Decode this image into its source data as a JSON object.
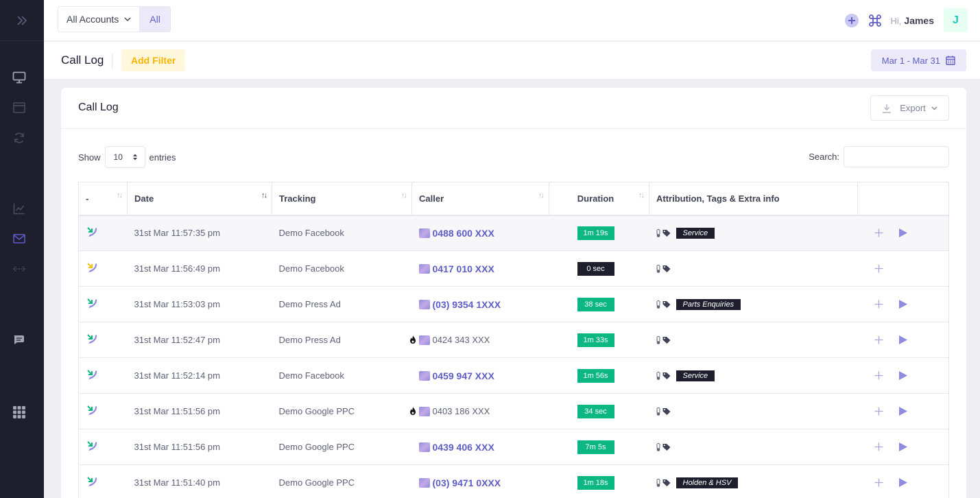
{
  "header": {
    "account_select": "All Accounts",
    "all_label": "All",
    "greeting": "Hi,",
    "user_name": "James",
    "avatar_letter": "J"
  },
  "subheader": {
    "title": "Call Log",
    "add_filter": "Add Filter",
    "date_range": "Mar 1 - Mar 31"
  },
  "card": {
    "title": "Call Log",
    "export_label": "Export",
    "show_label": "Show",
    "entries_value": "10",
    "entries_label": "entries",
    "search_label": "Search:",
    "search_value": ""
  },
  "table": {
    "columns": [
      "-",
      "Date",
      "Tracking",
      "Caller",
      "Duration",
      "Attribution, Tags & Extra info",
      ""
    ],
    "rows": [
      {
        "status": "answered",
        "date": "31st Mar 11:57:35 pm",
        "tracking": "Demo Facebook",
        "caller": "0488 600 XXX",
        "highlight": true,
        "flame": false,
        "duration": "1m 19s",
        "duration_color": "green",
        "tag": "Service",
        "play": true
      },
      {
        "status": "missed",
        "date": "31st Mar 11:56:49 pm",
        "tracking": "Demo Facebook",
        "caller": "0417 010 XXX",
        "highlight": true,
        "flame": false,
        "duration": "0 sec",
        "duration_color": "dark",
        "tag": "",
        "play": false
      },
      {
        "status": "answered",
        "date": "31st Mar 11:53:03 pm",
        "tracking": "Demo Press Ad",
        "caller": "(03) 9354 1XXX",
        "highlight": true,
        "flame": false,
        "duration": "38 sec",
        "duration_color": "green",
        "tag": "Parts Enquiries",
        "play": true
      },
      {
        "status": "answered",
        "date": "31st Mar 11:52:47 pm",
        "tracking": "Demo Press Ad",
        "caller": "0424 343 XXX",
        "highlight": false,
        "flame": true,
        "duration": "1m 33s",
        "duration_color": "green",
        "tag": "",
        "play": true
      },
      {
        "status": "answered",
        "date": "31st Mar 11:52:14 pm",
        "tracking": "Demo Facebook",
        "caller": "0459 947 XXX",
        "highlight": true,
        "flame": false,
        "duration": "1m 56s",
        "duration_color": "green",
        "tag": "Service",
        "play": true
      },
      {
        "status": "answered",
        "date": "31st Mar 11:51:56 pm",
        "tracking": "Demo Google PPC",
        "caller": "0403 186 XXX",
        "highlight": false,
        "flame": true,
        "duration": "34 sec",
        "duration_color": "green",
        "tag": "",
        "play": true
      },
      {
        "status": "answered",
        "date": "31st Mar 11:51:56 pm",
        "tracking": "Demo Google PPC",
        "caller": "0439 406 XXX",
        "highlight": true,
        "flame": false,
        "duration": "7m 5s",
        "duration_color": "green",
        "tag": "",
        "play": true
      },
      {
        "status": "answered",
        "date": "31st Mar 11:51:40 pm",
        "tracking": "Demo Google PPC",
        "caller": "(03) 9471 0XXX",
        "highlight": true,
        "flame": false,
        "duration": "1m 18s",
        "duration_color": "green",
        "tag": "Holden & HSV",
        "play": true
      }
    ]
  },
  "colors": {
    "accent": "#5e5cc6",
    "sidebar": "#1e1e2d",
    "duration_green": "#0bb783",
    "filter_yellow": "#ffb300"
  }
}
